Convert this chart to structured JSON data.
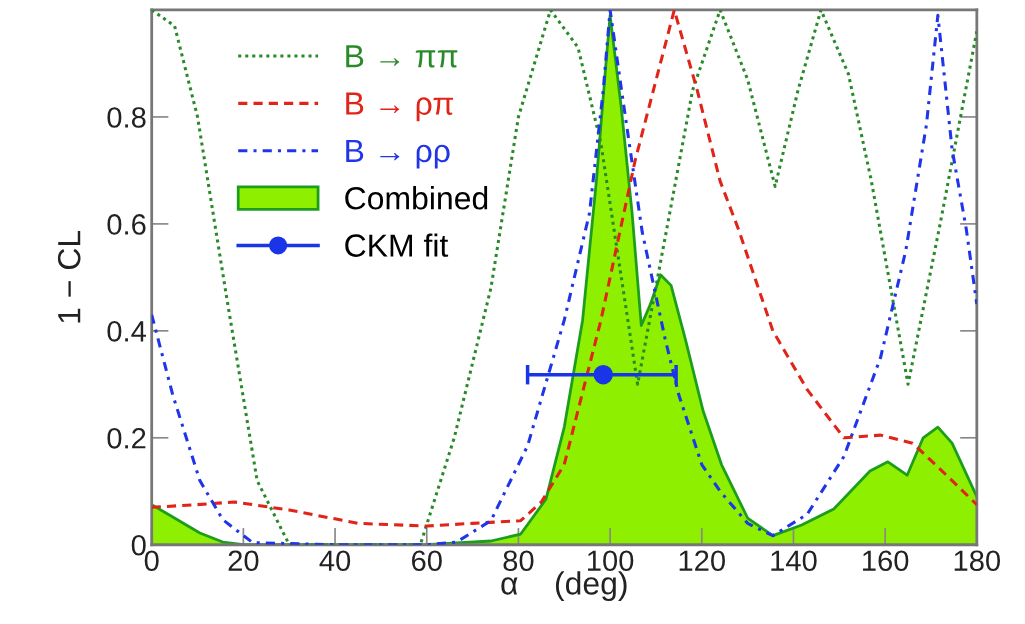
{
  "chart_data": {
    "type": "line",
    "xlabel": "α    (deg)",
    "ylabel": "1 − CL",
    "xlim": [
      0,
      180
    ],
    "xticks": [
      0,
      20,
      40,
      60,
      80,
      100,
      120,
      140,
      160,
      180
    ],
    "ylim": [
      0,
      1
    ],
    "yticks": [
      0,
      0.2,
      0.4,
      0.6,
      0.8
    ],
    "grid": false,
    "legend": "top left",
    "series": [
      {
        "name": "B → ππ",
        "line_style": "dotted",
        "color": "#2a8a2a",
        "x": [
          0,
          5,
          10,
          16.4,
          23,
          30,
          45,
          58.6,
          66,
          74,
          80,
          87,
          93,
          98,
          106,
          113,
          118,
          124,
          130,
          136,
          141,
          146,
          152,
          157,
          165,
          172,
          180
        ],
        "values": [
          1.0,
          0.97,
          0.8,
          0.46,
          0.12,
          0.0,
          0.0,
          0.0,
          0.2,
          0.48,
          0.8,
          1.0,
          0.93,
          0.75,
          0.3,
          0.62,
          0.85,
          1.0,
          0.87,
          0.67,
          0.85,
          1.0,
          0.88,
          0.68,
          0.3,
          0.6,
          0.96
        ]
      },
      {
        "name": "B → ρπ",
        "line_style": "dashed",
        "color": "#e02418",
        "x": [
          0,
          10,
          18,
          30,
          45,
          60,
          70,
          80.5,
          85,
          90,
          98,
          105.5,
          114,
          119,
          124,
          128,
          135.5,
          143,
          151,
          159,
          166,
          174.6,
          180
        ],
        "values": [
          0.07,
          0.075,
          0.08,
          0.065,
          0.04,
          0.035,
          0.04,
          0.045,
          0.08,
          0.15,
          0.42,
          0.72,
          1.0,
          0.85,
          0.68,
          0.59,
          0.4,
          0.29,
          0.2,
          0.205,
          0.19,
          0.12,
          0.075
        ]
      },
      {
        "name": "B → ρρ",
        "line_style": "dashdot",
        "color": "#2035ea",
        "x": [
          0,
          4.6,
          10.5,
          15.5,
          22,
          40,
          60,
          66.5,
          74,
          82,
          90,
          95.5,
          98.5,
          100,
          103,
          107,
          112,
          115,
          120,
          124,
          130,
          135.5,
          143,
          151,
          159,
          164.5,
          169,
          171.5,
          174.6,
          177.7,
          180
        ],
        "values": [
          0.43,
          0.28,
          0.12,
          0.047,
          0.004,
          0.0,
          0.0,
          0.005,
          0.045,
          0.185,
          0.42,
          0.62,
          0.85,
          1.0,
          0.82,
          0.585,
          0.385,
          0.28,
          0.15,
          0.1,
          0.04,
          0.017,
          0.057,
          0.165,
          0.35,
          0.55,
          0.785,
          0.99,
          0.74,
          0.59,
          0.45
        ]
      },
      {
        "name": "Combined",
        "type": "area",
        "line_style": "solid",
        "color": "#8ef000",
        "x": [
          0,
          4.6,
          10.5,
          15.5,
          20,
          40,
          60,
          74,
          80.5,
          86,
          90,
          94,
          97,
          99,
          100,
          102.4,
          104.8,
          106.8,
          108.8,
          111,
          113.3,
          116.4,
          120.3,
          124.3,
          130,
          135.5,
          141.8,
          148.8,
          156.7,
          160.6,
          164.8,
          168.3,
          171.5,
          174.6,
          180
        ],
        "values": [
          0.075,
          0.052,
          0.022,
          0.005,
          0.0,
          0.0,
          0.0,
          0.007,
          0.02,
          0.085,
          0.22,
          0.42,
          0.68,
          0.89,
          0.99,
          0.82,
          0.62,
          0.41,
          0.45,
          0.505,
          0.485,
          0.385,
          0.25,
          0.15,
          0.05,
          0.017,
          0.037,
          0.067,
          0.138,
          0.155,
          0.13,
          0.2,
          0.22,
          0.19,
          0.09
        ]
      },
      {
        "name": "CKM fit",
        "type": "scatter",
        "marker": "circle",
        "color": "#1a35e8",
        "x": [
          98.5
        ],
        "values": [
          0.318
        ],
        "xerrors": [
          [
            82,
            114.4
          ]
        ]
      }
    ]
  }
}
